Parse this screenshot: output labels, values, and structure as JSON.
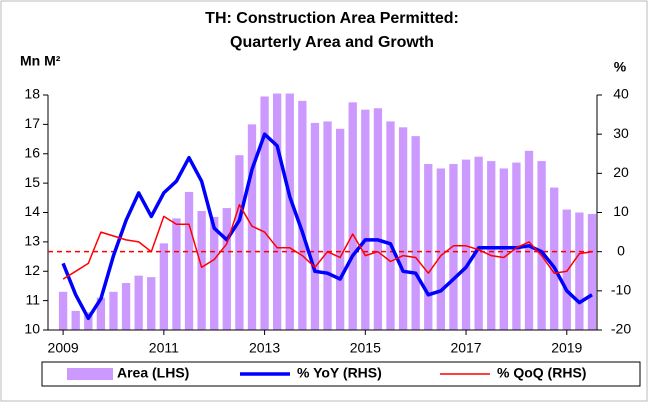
{
  "chart_data": {
    "type": "bar_line",
    "title": [
      "TH: Construction Area Permitted:",
      "Quarterly Area and Growth"
    ],
    "y_label": "Mn M²",
    "y2_label": "%",
    "x": [
      2009,
      2009.25,
      2009.5,
      2009.75,
      2010,
      2010.25,
      2010.5,
      2010.75,
      2011,
      2011.25,
      2011.5,
      2011.75,
      2012,
      2012.25,
      2012.5,
      2012.75,
      2013,
      2013.25,
      2013.5,
      2013.75,
      2014,
      2014.25,
      2014.5,
      2014.75,
      2015,
      2015.25,
      2015.5,
      2015.75,
      2016,
      2016.25,
      2016.5,
      2016.75,
      2017,
      2017.25,
      2017.5,
      2017.75,
      2018,
      2018.25,
      2018.5,
      2018.75,
      2019,
      2019.25,
      2019.5
    ],
    "series": [
      {
        "name": "Area (LHS)",
        "type": "bar",
        "color": "#cc99ff",
        "values": [
          11.3,
          10.65,
          10.6,
          11.1,
          11.3,
          11.6,
          11.85,
          11.8,
          12.95,
          13.8,
          14.7,
          14.05,
          13.85,
          14.15,
          15.95,
          17.0,
          17.95,
          18.05,
          18.05,
          17.8,
          17.05,
          17.1,
          16.85,
          17.75,
          17.5,
          17.55,
          17.1,
          16.9,
          16.6,
          15.65,
          15.5,
          15.65,
          15.8,
          15.9,
          15.75,
          15.5,
          15.7,
          16.1,
          15.75,
          14.85,
          14.1,
          14.0,
          13.95
        ]
      },
      {
        "name": "% YoY (RHS)",
        "type": "line",
        "axis": "y2",
        "color": "#0000ff",
        "width": 3.5,
        "values": [
          -3,
          -11,
          -17,
          -12,
          -1,
          8,
          15,
          9,
          15,
          18,
          24,
          18,
          6,
          3,
          8,
          21,
          30,
          27,
          14,
          5,
          -5,
          -5.5,
          -7,
          -1,
          3,
          3,
          2,
          -5,
          -5.5,
          -11,
          -10,
          -7,
          -4,
          1,
          1,
          1,
          1,
          1.5,
          0,
          -4,
          -10,
          -13,
          -11
        ]
      },
      {
        "name": "% QoQ (RHS)",
        "type": "line",
        "axis": "y2",
        "color": "#ff0000",
        "width": 1.5,
        "values": [
          -7,
          -5,
          -3,
          5,
          4,
          3,
          2.5,
          0,
          9,
          7,
          7,
          -4,
          -2,
          2,
          12,
          6.5,
          5,
          1,
          1,
          -1,
          -4,
          0,
          -1.5,
          4.5,
          -1,
          0,
          -2.5,
          -1,
          -1.5,
          -5.5,
          -1,
          1.5,
          1.5,
          0.5,
          -1,
          -1.5,
          1,
          2.5,
          -1,
          -5.5,
          -5,
          -0.5,
          0
        ]
      }
    ],
    "reference_line": {
      "value": 0,
      "axis": "y2",
      "color": "#ff0000",
      "dashed": true
    },
    "xlim": [
      2008.7,
      2019.6
    ],
    "xticks": [
      2009,
      2011,
      2013,
      2015,
      2017,
      2019
    ],
    "ylim": [
      10,
      18
    ],
    "yticks": [
      10,
      11,
      12,
      13,
      14,
      15,
      16,
      17,
      18
    ],
    "y2lim": [
      -20,
      40
    ],
    "y2ticks": [
      -20,
      -10,
      0,
      10,
      20,
      30,
      40
    ],
    "legend": "bottom"
  }
}
